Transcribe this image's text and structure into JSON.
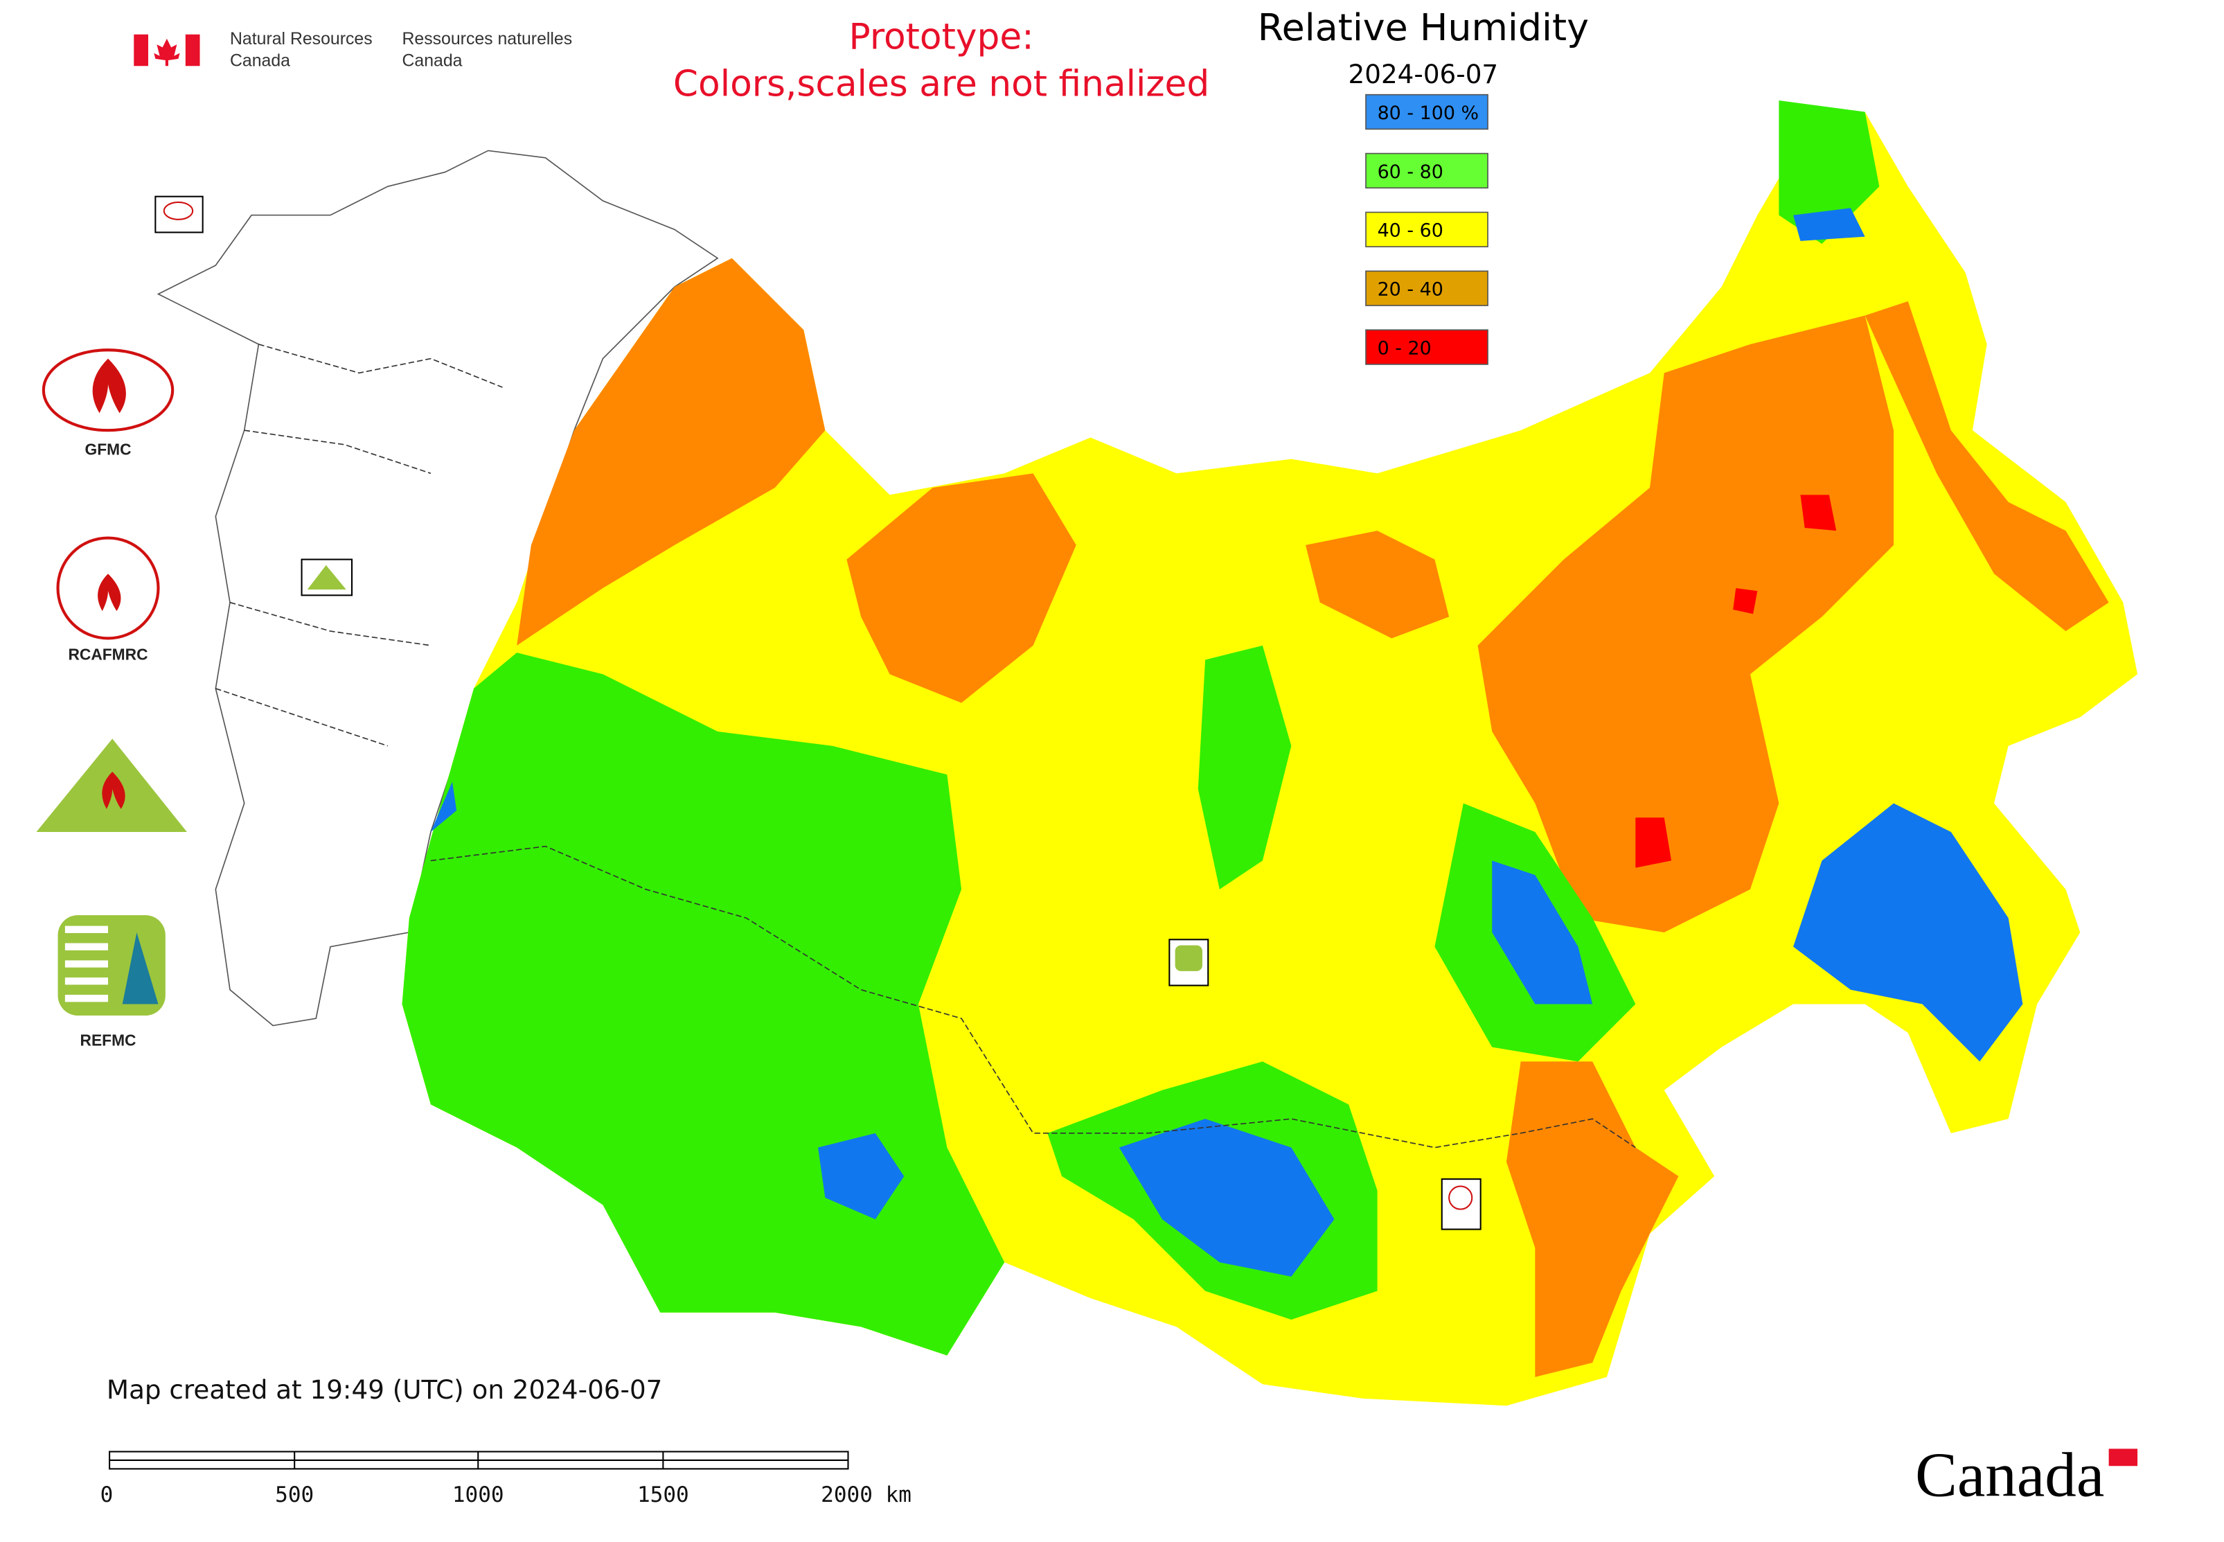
{
  "header": {
    "org_en": [
      "Natural Resources",
      "Canada"
    ],
    "org_fr": [
      "Ressources naturelles",
      "Canada"
    ],
    "prototype_note": [
      "Prototype:",
      "Colors,scales are not finalized"
    ]
  },
  "title": "Relative Humidity",
  "date": "2024-06-07",
  "legend": [
    {
      "label": "80 - 100 %",
      "color": "#2f8ff2"
    },
    {
      "label": "60 - 80",
      "color": "#66ff33"
    },
    {
      "label": "40 - 60",
      "color": "#ffff00"
    },
    {
      "label": "20 - 40",
      "color": "#e0a000"
    },
    {
      "label": "0 - 20",
      "color": "#ff0000"
    }
  ],
  "partners": [
    "GFMC",
    "RCAFMRC",
    "REFMC"
  ],
  "footer": {
    "created": "Map created at 19:49 (UTC) on 2024-06-07",
    "scale_labels": [
      "0",
      "500",
      "1000",
      "1500",
      "2000 km"
    ],
    "wordmark": "Canada"
  }
}
